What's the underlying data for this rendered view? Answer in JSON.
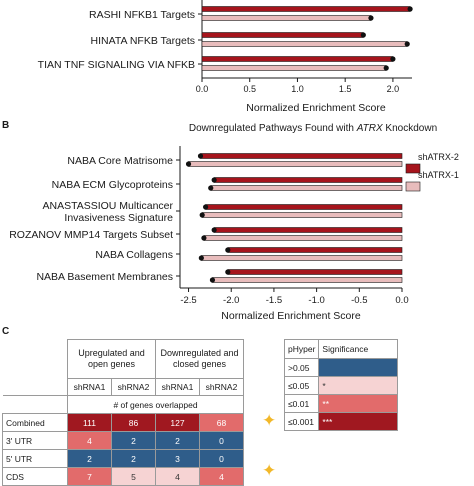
{
  "panel_a": {
    "chart_data": {
      "type": "bar",
      "orientation": "horizontal",
      "categories": [
        "RASHI NFKB1 Targets",
        "HINATA NFKB Targets",
        "TIAN TNF SIGNALING VIA NFKB"
      ],
      "series": [
        {
          "name": "shATRX-2",
          "values": [
            2.18,
            1.69,
            2.0
          ]
        },
        {
          "name": "shATRX-1",
          "values": [
            1.77,
            2.15,
            1.93
          ]
        }
      ],
      "xlabel": "Normalized Enrichment Score",
      "xlim": [
        0,
        2.2
      ],
      "ticks": [
        "0.0",
        "0.5",
        "1.0",
        "1.5",
        "2.0"
      ],
      "colors": {
        "shATRX-2": "#a6141c",
        "shATRX-1": "#e8bcbc"
      }
    }
  },
  "panel_b": {
    "letter": "B",
    "chart_data": {
      "type": "bar",
      "orientation": "horizontal",
      "title_prefix": "Downregulated Pathways Found with ",
      "title_gene": "ATRX",
      "title_suffix": " Knockdown",
      "categories": [
        "NABA Core Matrisome",
        "NABA ECM Glycoproteins",
        "ANASTASSIOU Multicancer Invasiveness Signature",
        "ROZANOV MMP14 Targets Subset",
        "NABA Collagens",
        "NABA Basement Membranes"
      ],
      "category_lines": [
        [
          "NABA Core Matrisome"
        ],
        [
          "NABA ECM Glycoproteins"
        ],
        [
          "ANASTASSIOU Multicancer",
          "Invasiveness Signature"
        ],
        [
          "ROZANOV MMP14 Targets Subset"
        ],
        [
          "NABA Collagens"
        ],
        [
          "NABA Basement Membranes"
        ]
      ],
      "series": [
        {
          "name": "shATRX-2",
          "values": [
            -2.36,
            -2.2,
            -2.3,
            -2.2,
            -2.04,
            -2.04
          ]
        },
        {
          "name": "shATRX-1",
          "values": [
            -2.5,
            -2.24,
            -2.34,
            -2.32,
            -2.35,
            -2.22
          ]
        }
      ],
      "xlabel": "Normalized Enrichment Score",
      "xlim": [
        -2.6,
        0
      ],
      "ticks": [
        "-2.5",
        "-2.0",
        "-1.5",
        "-1.0",
        "-0.5",
        "0.0"
      ],
      "legend": [
        "shATRX-2",
        "shATRX-1"
      ],
      "legend_position": "right",
      "colors": {
        "shATRX-2": "#a6141c",
        "shATRX-1": "#e8bcbc"
      }
    }
  },
  "panel_c": {
    "letter": "C",
    "chart_data": {
      "type": "table",
      "group_headers": [
        "Upregulated and open genes",
        "Downregulated and closed genes"
      ],
      "sub_headers": [
        "shRNA1",
        "shRNA2",
        "shRNA1",
        "shRNA2"
      ],
      "caption": "# of genes overlapped",
      "rows": [
        {
          "label": "Combined",
          "values": [
            "111",
            "86",
            "127",
            "68"
          ],
          "levels": [
            "p3",
            "p3",
            "p3",
            "p2"
          ]
        },
        {
          "label": "3' UTR",
          "values": [
            "4",
            "2",
            "2",
            "0"
          ],
          "levels": [
            "p2",
            "ns",
            "ns",
            "ns"
          ]
        },
        {
          "label": "5' UTR",
          "values": [
            "2",
            "2",
            "3",
            "0"
          ],
          "levels": [
            "ns",
            "ns",
            "ns",
            "ns"
          ]
        },
        {
          "label": "CDS",
          "values": [
            "7",
            "5",
            "4",
            "4"
          ],
          "levels": [
            "p2",
            "p1",
            "p1",
            "p2"
          ]
        }
      ],
      "legend_title": [
        "pHyper",
        "Significance"
      ],
      "legend": [
        {
          "threshold": ">0.05",
          "mark": "",
          "level": "ns"
        },
        {
          "threshold": "≤0.05",
          "mark": "*",
          "level": "p1"
        },
        {
          "threshold": "≤0.01",
          "mark": "**",
          "level": "p2"
        },
        {
          "threshold": "≤0.001",
          "mark": "***",
          "level": "p3"
        }
      ],
      "colors": {
        "ns": "#2f5d8a",
        "p1": "#f6d3d3",
        "p2": "#e26b6b",
        "p3": "#a01820"
      },
      "marker_icon": "four-point-star-icon"
    }
  }
}
